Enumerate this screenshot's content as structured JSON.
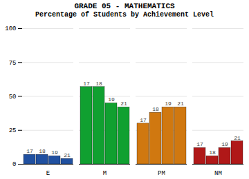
{
  "chart_data": {
    "type": "bar",
    "title": "GRADE 05 - MATHEMATICS",
    "subtitle": "Percentage of Students by Achievement Level",
    "categories": [
      "E",
      "M",
      "PM",
      "NM"
    ],
    "series": [
      {
        "name": "17",
        "values": [
          7,
          57,
          30,
          12
        ],
        "colors": [
          "#2050a0",
          "#10a030",
          "#d07810",
          "#b01818"
        ]
      },
      {
        "name": "18",
        "values": [
          7,
          57,
          38,
          6
        ],
        "colors": [
          "#2050a0",
          "#10a030",
          "#d07810",
          "#b01818"
        ]
      },
      {
        "name": "19",
        "values": [
          6,
          45,
          42,
          12
        ],
        "colors": [
          "#2050a0",
          "#10a030",
          "#d07810",
          "#b01818"
        ]
      },
      {
        "name": "21",
        "values": [
          4,
          42,
          42,
          17
        ],
        "colors": [
          "#2050a0",
          "#10a030",
          "#d07810",
          "#b01818"
        ]
      }
    ],
    "ylim": [
      0,
      100
    ],
    "yticks": [
      0,
      25,
      50,
      75,
      100
    ],
    "grid": true
  }
}
